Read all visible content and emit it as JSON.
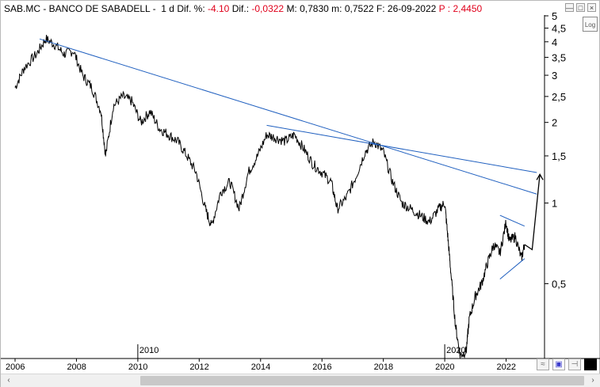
{
  "header": {
    "symbol": "SAB.MC - BANCO DE SABADELL -",
    "period": "1 d",
    "dif_pct_label": "Dif. %:",
    "dif_pct_value": "-4.10",
    "dif_label": "Dif.:",
    "dif_value": "-0,0322",
    "max_label": "M:",
    "max_value": "0,7830",
    "min_label": "m:",
    "min_value": "0,7522",
    "date_label": "F:",
    "date_value": "26-09-2022",
    "price_label": "P :",
    "price_value": "2,4450"
  },
  "window_buttons": {
    "minimize": "—",
    "maximize": "□",
    "close": "×"
  },
  "log_button": "Log",
  "colors": {
    "trendline": "#1f5fbf",
    "price": "#000000",
    "negative": "#e0001b"
  },
  "chart_data": {
    "type": "line",
    "y_scale": "log",
    "y_ticks": [
      "5",
      "4,5",
      "4",
      "3,5",
      "3",
      "2,5",
      "2",
      "1,5",
      "1",
      "0,5"
    ],
    "x_ticks": [
      "2006",
      "2008",
      "2010",
      "2012",
      "2014",
      "2016",
      "2018",
      "2020",
      "2022"
    ],
    "inner_year_markers": [
      "2010",
      "2020"
    ],
    "series": [
      {
        "x": [
          2006.0,
          2006.3,
          2006.7,
          2007.0,
          2007.3,
          2007.6,
          2007.9,
          2008.2,
          2008.5,
          2008.8,
          2008.95,
          2009.2,
          2009.5,
          2009.8,
          2010.1,
          2010.4,
          2010.7,
          2011.0,
          2011.3,
          2011.6,
          2011.9,
          2012.2,
          2012.4,
          2012.7,
          2013.0,
          2013.3,
          2013.6,
          2013.9,
          2014.2,
          2014.5,
          2014.8,
          2015.1,
          2015.4,
          2015.7,
          2016.0,
          2016.3,
          2016.5,
          2016.8,
          2017.1,
          2017.4,
          2017.7,
          2018.0,
          2018.3,
          2018.6,
          2018.9,
          2019.2,
          2019.5,
          2019.8,
          2020.0,
          2020.1,
          2020.2,
          2020.35,
          2020.5,
          2020.7,
          2020.8,
          2021.0,
          2021.2,
          2021.4,
          2021.6,
          2021.8,
          2022.0,
          2022.1,
          2022.3,
          2022.5,
          2022.6
        ],
        "y": [
          2.7,
          3.2,
          3.6,
          4.1,
          3.9,
          3.6,
          3.7,
          3.0,
          2.7,
          2.2,
          1.5,
          2.3,
          2.5,
          2.4,
          2.0,
          2.2,
          1.9,
          1.8,
          1.7,
          1.5,
          1.3,
          0.95,
          0.82,
          1.1,
          1.2,
          0.95,
          1.3,
          1.5,
          1.8,
          1.75,
          1.7,
          1.8,
          1.6,
          1.4,
          1.3,
          1.2,
          0.95,
          1.05,
          1.25,
          1.55,
          1.7,
          1.55,
          1.2,
          1.0,
          0.95,
          0.9,
          0.85,
          0.95,
          1.0,
          0.75,
          0.55,
          0.35,
          0.27,
          0.28,
          0.37,
          0.45,
          0.5,
          0.6,
          0.7,
          0.65,
          0.85,
          0.72,
          0.75,
          0.62,
          0.7
        ]
      }
    ],
    "projection": {
      "x": [
        2022.6,
        2022.85,
        2023.1
      ],
      "y": [
        0.7,
        0.67,
        1.28
      ]
    },
    "trendlines": [
      {
        "x": [
          2006.8,
          2023.0
        ],
        "y": [
          4.1,
          1.08
        ]
      },
      {
        "x": [
          2014.2,
          2023.0
        ],
        "y": [
          1.95,
          1.3
        ]
      },
      {
        "x": [
          2021.8,
          2022.6
        ],
        "y": [
          0.9,
          0.82
        ]
      },
      {
        "x": [
          2021.8,
          2022.6
        ],
        "y": [
          0.52,
          0.62
        ]
      }
    ]
  }
}
